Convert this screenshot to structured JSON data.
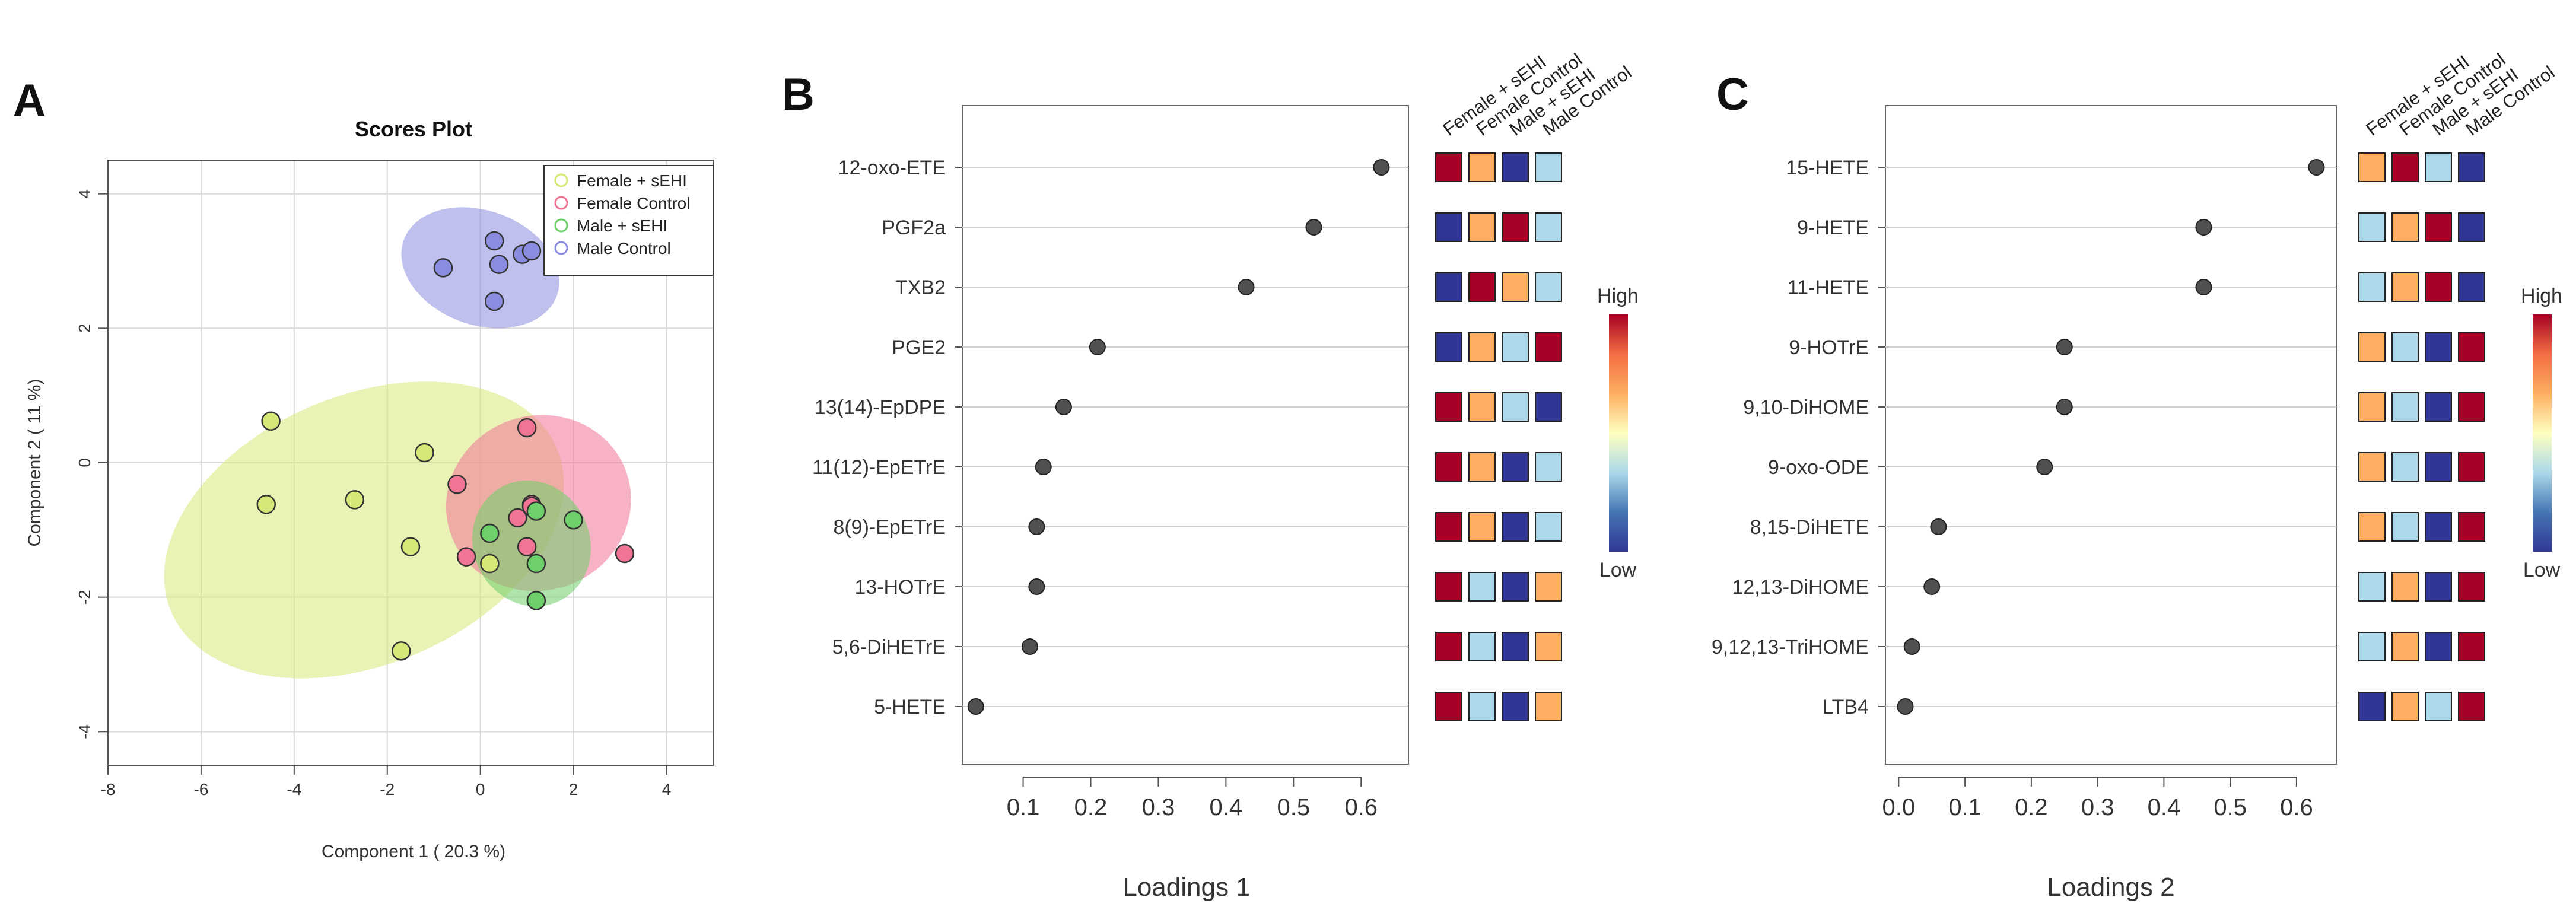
{
  "panels": {
    "a": {
      "letter": "A"
    },
    "b": {
      "letter": "B"
    },
    "c": {
      "letter": "C"
    }
  },
  "heatmap": {
    "columns": [
      "Female + sEHI",
      "Female Control",
      "Male + sEHI",
      "Male Control"
    ],
    "legend_high": "High",
    "legend_low": "Low",
    "scale_colors": [
      "#313695",
      "#4575b4",
      "#abd9e9",
      "#ffffbf",
      "#fdae61",
      "#f46d43",
      "#a50026"
    ]
  },
  "colors": {
    "Female + sEHI": "#d8e878",
    "Female Control": "#f07595",
    "Male + sEHI": "#6dd06a",
    "Male Control": "#8a8ce0"
  },
  "chart_data": [
    {
      "type": "scatter",
      "title": "Scores Plot",
      "xlabel": "Component 1 ( 20.3 %)",
      "ylabel": "Component 2 ( 11 %)",
      "xlim": [
        -8,
        5
      ],
      "ylim": [
        -4.5,
        4.5
      ],
      "xticks": [
        -8,
        -6,
        -4,
        -2,
        0,
        2,
        4
      ],
      "yticks": [
        -4,
        -2,
        0,
        2,
        4
      ],
      "grid": true,
      "legend_position": "top-right",
      "series": [
        {
          "name": "Female + sEHI",
          "points": [
            [
              -4.5,
              0.62
            ],
            [
              -4.6,
              -0.62
            ],
            [
              -2.7,
              -0.55
            ],
            [
              -1.2,
              0.15
            ],
            [
              -1.5,
              -1.25
            ],
            [
              -1.7,
              -2.8
            ],
            [
              0.2,
              -1.5
            ]
          ]
        },
        {
          "name": "Female Control",
          "points": [
            [
              1.0,
              0.52
            ],
            [
              -0.5,
              -0.32
            ],
            [
              0.8,
              -0.82
            ],
            [
              1.1,
              -0.62
            ],
            [
              1.1,
              -0.65
            ],
            [
              1.0,
              -1.25
            ],
            [
              -0.3,
              -1.4
            ],
            [
              3.1,
              -1.35
            ]
          ]
        },
        {
          "name": "Male + sEHI",
          "points": [
            [
              0.2,
              -1.05
            ],
            [
              1.2,
              -0.72
            ],
            [
              2.0,
              -0.85
            ],
            [
              1.2,
              -1.5
            ],
            [
              1.2,
              -2.05
            ]
          ]
        },
        {
          "name": "Male Control",
          "points": [
            [
              -0.8,
              2.9
            ],
            [
              0.3,
              3.3
            ],
            [
              0.4,
              2.95
            ],
            [
              0.9,
              3.1
            ],
            [
              1.1,
              3.15
            ],
            [
              0.3,
              2.4
            ]
          ]
        }
      ],
      "ellipses": [
        {
          "series": "Female + sEHI",
          "center": [
            -2.5,
            -1.0
          ],
          "semi_axes": [
            4.5,
            2.0
          ],
          "angle_deg": -23
        },
        {
          "series": "Female Control",
          "center": [
            1.25,
            -0.6
          ],
          "semi_axes": [
            2.0,
            1.3
          ],
          "angle_deg": -20
        },
        {
          "series": "Male + sEHI",
          "center": [
            1.1,
            -1.2
          ],
          "semi_axes": [
            1.25,
            0.95
          ],
          "angle_deg": -25
        },
        {
          "series": "Male Control",
          "center": [
            0.0,
            2.9
          ],
          "semi_axes": [
            1.75,
            0.85
          ],
          "angle_deg": 20
        }
      ]
    },
    {
      "type": "dot",
      "xlabel": "Loadings 1",
      "xlim": [
        0.01,
        0.67
      ],
      "xticks": [
        0.1,
        0.2,
        0.3,
        0.4,
        0.5,
        0.6
      ],
      "xtick_labels": [
        "0.1",
        "0.2",
        "0.3",
        "0.4",
        "0.5",
        "0.6"
      ],
      "categories": [
        "12-oxo-ETE",
        "PGF2a",
        "TXB2",
        "PGE2",
        "13(14)-EpDPE",
        "11(12)-EpETrE",
        "8(9)-EpETrE",
        "13-HOTrE",
        "5,6-DiHETrE",
        "5-HETE"
      ],
      "values": [
        0.63,
        0.53,
        0.43,
        0.21,
        0.16,
        0.13,
        0.12,
        0.12,
        0.11,
        0.03
      ],
      "heatmap_levels": [
        [
          "high",
          "mid-high",
          "low",
          "mid-low"
        ],
        [
          "low",
          "mid-high",
          "high",
          "mid-low"
        ],
        [
          "low",
          "high",
          "mid-high",
          "mid-low"
        ],
        [
          "low",
          "mid-high",
          "mid-low",
          "high"
        ],
        [
          "high",
          "mid-high",
          "mid-low",
          "low"
        ],
        [
          "high",
          "mid-high",
          "low",
          "mid-low"
        ],
        [
          "high",
          "mid-high",
          "low",
          "mid-low"
        ],
        [
          "high",
          "mid-low",
          "low",
          "mid-high"
        ],
        [
          "high",
          "mid-low",
          "low",
          "mid-high"
        ],
        [
          "high",
          "mid-low",
          "low",
          "mid-high"
        ]
      ]
    },
    {
      "type": "dot",
      "xlabel": "Loadings 2",
      "xlim": [
        -0.02,
        0.66
      ],
      "xticks": [
        0.0,
        0.1,
        0.2,
        0.3,
        0.4,
        0.5,
        0.6
      ],
      "xtick_labels": [
        "0.0",
        "0.1",
        "0.2",
        "0.3",
        "0.4",
        "0.5",
        "0.6"
      ],
      "categories": [
        "15-HETE",
        "9-HETE",
        "11-HETE",
        "9-HOTrE",
        "9,10-DiHOME",
        "9-oxo-ODE",
        "8,15-DiHETE",
        "12,13-DiHOME",
        "9,12,13-TriHOME",
        "LTB4"
      ],
      "values": [
        0.63,
        0.46,
        0.46,
        0.25,
        0.25,
        0.22,
        0.06,
        0.05,
        0.02,
        0.01
      ],
      "heatmap_levels": [
        [
          "mid-high",
          "high",
          "mid-low",
          "low"
        ],
        [
          "mid-low",
          "mid-high",
          "high",
          "low"
        ],
        [
          "mid-low",
          "mid-high",
          "high",
          "low"
        ],
        [
          "mid-high",
          "mid-low",
          "low",
          "high"
        ],
        [
          "mid-high",
          "mid-low",
          "low",
          "high"
        ],
        [
          "mid-high",
          "mid-low",
          "low",
          "high"
        ],
        [
          "mid-high",
          "mid-low",
          "low",
          "high"
        ],
        [
          "mid-low",
          "mid-high",
          "low",
          "high"
        ],
        [
          "mid-low",
          "mid-high",
          "low",
          "high"
        ],
        [
          "low",
          "mid-high",
          "mid-low",
          "high"
        ]
      ]
    }
  ]
}
